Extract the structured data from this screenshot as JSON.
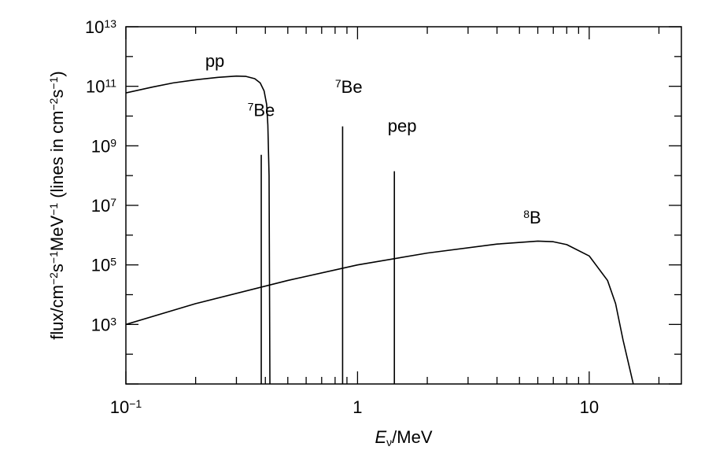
{
  "chart_data": {
    "type": "line",
    "xscale": "log",
    "yscale": "log",
    "xlim": [
      0.1,
      25
    ],
    "ylim": [
      10,
      10000000000000
    ],
    "grid": false,
    "xlabel": {
      "main": "E",
      "sub": "ν",
      "rest": "/MeV"
    },
    "ylabel": {
      "parts": [
        {
          "t": "flux/cm"
        },
        {
          "t": "−2",
          "sup": true
        },
        {
          "t": "s"
        },
        {
          "t": "−1",
          "sup": true
        },
        {
          "t": "MeV"
        },
        {
          "t": "−1",
          "sup": true
        },
        {
          "t": " (lines in cm"
        },
        {
          "t": "−2",
          "sup": true
        },
        {
          "t": "s"
        },
        {
          "t": "−1",
          "sup": true
        },
        {
          "t": ")"
        }
      ]
    },
    "x_ticks": [
      {
        "value": 0.1,
        "base": "10",
        "exp": "−1"
      },
      {
        "value": 1,
        "base": "1",
        "exp": ""
      },
      {
        "value": 10,
        "base": "10",
        "exp": ""
      }
    ],
    "y_ticks": [
      {
        "value": 1000,
        "base": "10",
        "exp": "3"
      },
      {
        "value": 100000,
        "base": "10",
        "exp": "5"
      },
      {
        "value": 10000000,
        "base": "10",
        "exp": "7"
      },
      {
        "value": 1000000000,
        "base": "10",
        "exp": "9"
      },
      {
        "value": 100000000000,
        "base": "10",
        "exp": "11"
      },
      {
        "value": 10000000000000,
        "base": "10",
        "exp": "13"
      }
    ],
    "series": [
      {
        "name": "pp",
        "kind": "curve",
        "x": [
          0.1,
          0.13,
          0.16,
          0.2,
          0.25,
          0.3,
          0.33,
          0.36,
          0.38,
          0.395,
          0.405,
          0.41,
          0.415,
          0.4185
        ],
        "y": [
          60000000000,
          94000000000,
          130000000000,
          165000000000,
          200000000000,
          220000000000,
          215000000000,
          180000000000,
          130000000000,
          70000000000,
          25000000000,
          5000000000,
          100000000,
          10
        ]
      },
      {
        "name": "8B",
        "kind": "curve",
        "x": [
          0.1,
          0.2,
          0.5,
          1,
          2,
          4,
          6,
          7,
          8,
          10,
          12,
          13,
          14,
          15,
          15.5
        ],
        "y": [
          1000,
          5000,
          30000,
          100000,
          250000,
          500000,
          630000,
          600000,
          480000,
          200000,
          30000,
          5000,
          300,
          30,
          10
        ]
      },
      {
        "name": "7Be",
        "kind": "line",
        "x": 0.384,
        "y": 500000000
      },
      {
        "name": "7Be",
        "kind": "line",
        "x": 0.862,
        "y": 4500000000
      },
      {
        "name": "pep",
        "kind": "line",
        "x": 1.442,
        "y": 140000000
      }
    ],
    "annotations": [
      {
        "base": "",
        "sup": "",
        "text": "pp",
        "x": 0.22,
        "y": 450000000000
      },
      {
        "base": "",
        "sup": "7",
        "text": "Be",
        "x": 0.335,
        "y": 10000000000
      },
      {
        "base": "",
        "sup": "7",
        "text": "Be",
        "x": 0.8,
        "y": 60000000000
      },
      {
        "base": "",
        "sup": "",
        "text": "pep",
        "x": 1.35,
        "y": 3000000000
      },
      {
        "base": "",
        "sup": "8",
        "text": "B",
        "x": 5.2,
        "y": 2500000
      }
    ]
  }
}
